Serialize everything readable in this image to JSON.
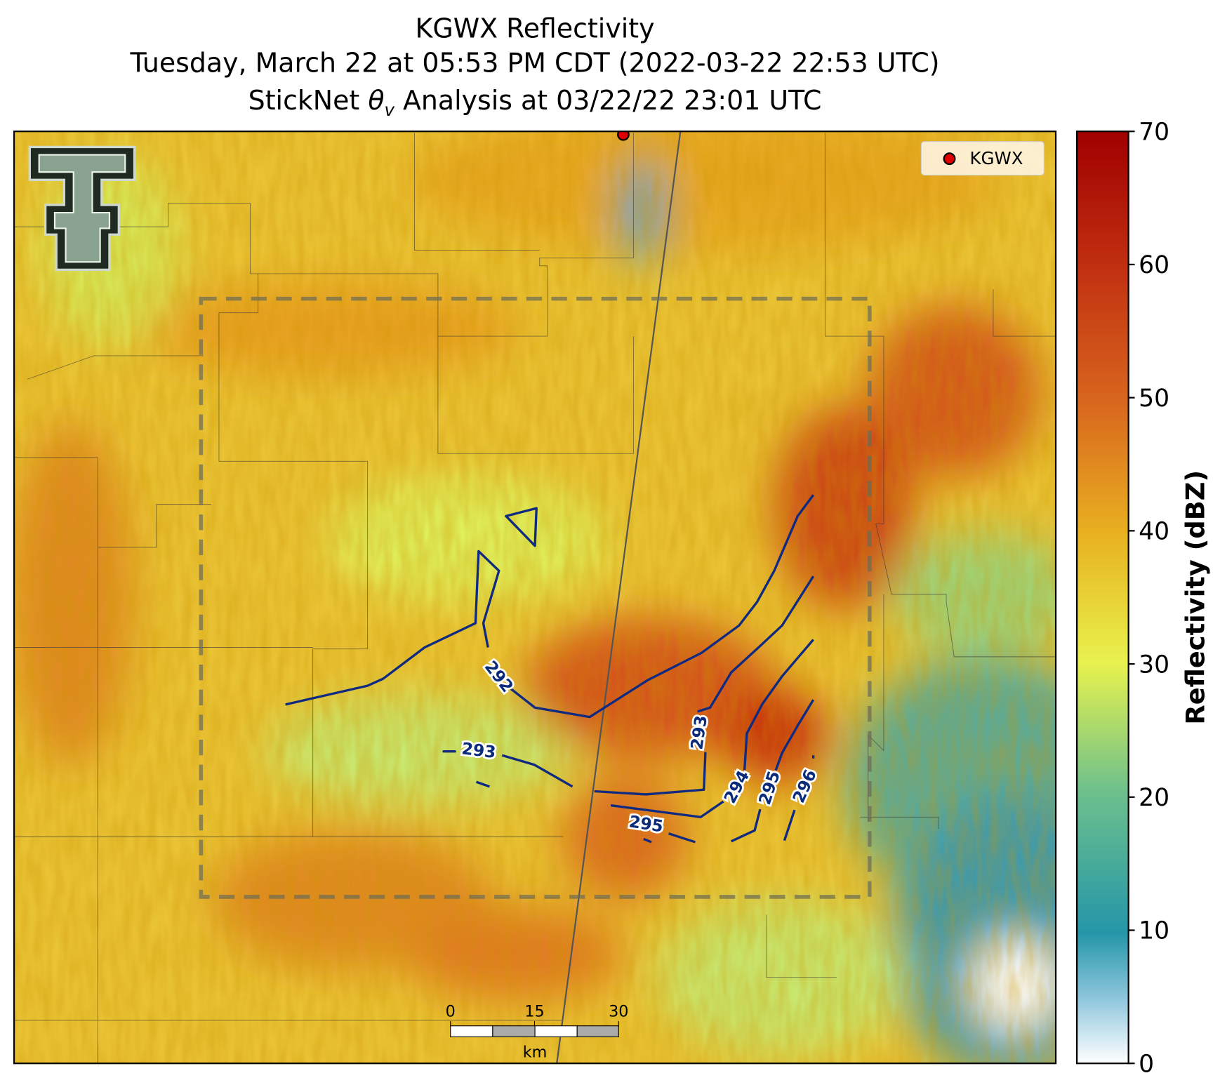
{
  "title_lines": [
    "KGWX Reflectivity",
    "Tuesday, March 22 at 05:53 PM CDT (2022-03-22 22:53 UTC)"
  ],
  "analysis_title": {
    "prefix": "StickNet ",
    "symbol": "θ",
    "subscript": "v",
    "suffix": " Analysis at 03/22/22 23:01 UTC"
  },
  "legend": {
    "label": "KGWX"
  },
  "colorbar": {
    "label": "Reflectivity (dBZ)",
    "lim": [
      0,
      70
    ],
    "ticks": [
      0,
      10,
      20,
      30,
      40,
      50,
      60,
      70
    ]
  },
  "contours": [
    292,
    293,
    293,
    294,
    295,
    295,
    296
  ],
  "scale_bar": {
    "ticks": [
      0,
      15,
      30
    ],
    "unit": "km"
  }
}
